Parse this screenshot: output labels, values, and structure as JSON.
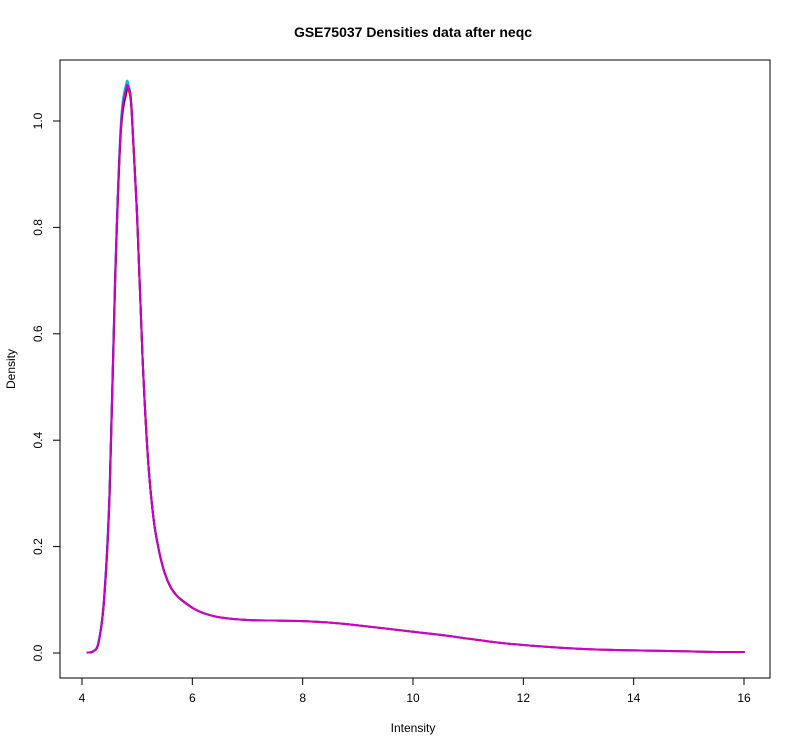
{
  "chart_data": {
    "type": "line",
    "title": "GSE75037 Densities data after neqc",
    "xlabel": "Intensity",
    "ylabel": "Density",
    "xlim": [
      4,
      16
    ],
    "ylim": [
      0,
      1.0
    ],
    "x_ticks": [
      4,
      6,
      8,
      10,
      12,
      14,
      16
    ],
    "y_ticks": [
      0.0,
      0.2,
      0.4,
      0.6,
      0.8,
      1.0
    ],
    "x_tick_labels": [
      "4",
      "6",
      "8",
      "10",
      "12",
      "14",
      "16"
    ],
    "y_tick_labels": [
      "0.0",
      "0.2",
      "0.4",
      "0.6",
      "0.8",
      "1.0"
    ],
    "grid": false,
    "series": [
      {
        "color": "#cc00cc",
        "x": [
          4.1,
          4.2,
          4.3,
          4.4,
          4.5,
          4.6,
          4.7,
          4.8,
          4.85,
          4.9,
          5.0,
          5.1,
          5.2,
          5.3,
          5.4,
          5.5,
          5.6,
          5.7,
          5.8,
          6.0,
          6.2,
          6.5,
          7.0,
          7.5,
          8.0,
          8.5,
          9.0,
          9.5,
          10.0,
          10.5,
          11.0,
          11.5,
          12.0,
          12.5,
          13.0,
          13.5,
          14.0,
          14.5,
          15.0,
          15.5,
          16.0
        ],
        "y": [
          0.001,
          0.003,
          0.02,
          0.1,
          0.3,
          0.7,
          0.98,
          1.06,
          1.06,
          1.02,
          0.82,
          0.55,
          0.36,
          0.25,
          0.19,
          0.15,
          0.125,
          0.11,
          0.1,
          0.085,
          0.075,
          0.067,
          0.062,
          0.061,
          0.06,
          0.057,
          0.052,
          0.046,
          0.04,
          0.034,
          0.027,
          0.02,
          0.015,
          0.011,
          0.008,
          0.006,
          0.005,
          0.004,
          0.003,
          0.002,
          0.002
        ]
      },
      {
        "color": "#00bcd4",
        "x": [
          4.1,
          4.2,
          4.3,
          4.4,
          4.5,
          4.6,
          4.7,
          4.8,
          4.85,
          4.9,
          5.0,
          5.1,
          5.2,
          5.3,
          5.4,
          5.5,
          5.6,
          5.7,
          5.8,
          6.0,
          6.2,
          6.5,
          7.0,
          7.5,
          8.0,
          8.5,
          9.0,
          9.5,
          10.0,
          10.5,
          11.0,
          11.5,
          12.0,
          12.5,
          13.0,
          13.5,
          14.0,
          14.5,
          15.0,
          15.5,
          16.0
        ],
        "y": [
          0.001,
          0.003,
          0.021,
          0.105,
          0.31,
          0.71,
          0.99,
          1.07,
          1.065,
          1.025,
          0.82,
          0.55,
          0.36,
          0.25,
          0.19,
          0.15,
          0.125,
          0.11,
          0.1,
          0.085,
          0.075,
          0.067,
          0.062,
          0.061,
          0.06,
          0.057,
          0.052,
          0.046,
          0.04,
          0.034,
          0.027,
          0.02,
          0.015,
          0.011,
          0.008,
          0.006,
          0.005,
          0.004,
          0.003,
          0.002,
          0.002
        ]
      },
      {
        "color": "#ff4d00",
        "x": [
          4.1,
          4.2,
          4.3,
          4.4,
          4.5,
          4.6,
          4.7,
          4.8,
          4.85,
          4.9,
          5.0,
          5.1,
          5.2,
          5.3,
          5.4,
          5.5,
          5.6,
          5.7,
          5.8,
          6.0,
          6.2,
          6.5,
          7.0,
          7.5,
          8.0,
          8.5,
          9.0,
          9.5,
          10.0,
          10.5,
          11.0,
          11.5,
          12.0,
          12.5,
          13.0,
          13.5,
          14.0,
          14.5,
          15.0,
          15.5,
          16.0
        ],
        "y": [
          0.001,
          0.003,
          0.019,
          0.098,
          0.29,
          0.69,
          0.97,
          1.05,
          1.055,
          1.015,
          0.815,
          0.548,
          0.358,
          0.249,
          0.19,
          0.15,
          0.125,
          0.11,
          0.1,
          0.085,
          0.075,
          0.067,
          0.062,
          0.061,
          0.06,
          0.057,
          0.052,
          0.046,
          0.04,
          0.034,
          0.027,
          0.02,
          0.015,
          0.011,
          0.008,
          0.006,
          0.005,
          0.004,
          0.003,
          0.002,
          0.002
        ]
      },
      {
        "color": "#000000",
        "x": [
          4.1,
          4.2,
          4.3,
          4.4,
          4.5,
          4.6,
          4.7,
          4.8,
          4.85,
          4.9,
          5.0,
          5.1,
          5.2,
          5.3,
          5.4,
          5.5,
          5.6,
          5.7,
          5.8,
          6.0
        ],
        "y": [
          0.001,
          0.003,
          0.02,
          0.1,
          0.3,
          0.7,
          0.975,
          1.055,
          1.06,
          1.02,
          0.818,
          0.549,
          0.359,
          0.25,
          0.19,
          0.15,
          0.125,
          0.11,
          0.1,
          0.085
        ]
      },
      {
        "color": "#cc00cc",
        "x": [
          4.1,
          4.2,
          4.3,
          4.4,
          4.5,
          4.6,
          4.7,
          4.8,
          4.85,
          4.9,
          5.0,
          5.1,
          5.2,
          5.3,
          5.4,
          5.5,
          5.6,
          5.7,
          5.8,
          6.0,
          6.2,
          6.5,
          7.0,
          7.5,
          8.0,
          8.5,
          9.0,
          9.5,
          10.0,
          10.5,
          11.0,
          11.5,
          12.0,
          12.5,
          13.0,
          13.5,
          14.0,
          14.5,
          15.0,
          15.5,
          16.0
        ],
        "y": [
          0.001,
          0.003,
          0.02,
          0.1,
          0.3,
          0.7,
          0.98,
          1.06,
          1.06,
          1.02,
          0.82,
          0.55,
          0.36,
          0.25,
          0.19,
          0.15,
          0.125,
          0.11,
          0.1,
          0.085,
          0.075,
          0.067,
          0.062,
          0.061,
          0.06,
          0.057,
          0.052,
          0.046,
          0.04,
          0.034,
          0.027,
          0.02,
          0.015,
          0.011,
          0.008,
          0.006,
          0.005,
          0.004,
          0.003,
          0.002,
          0.002
        ]
      }
    ]
  }
}
